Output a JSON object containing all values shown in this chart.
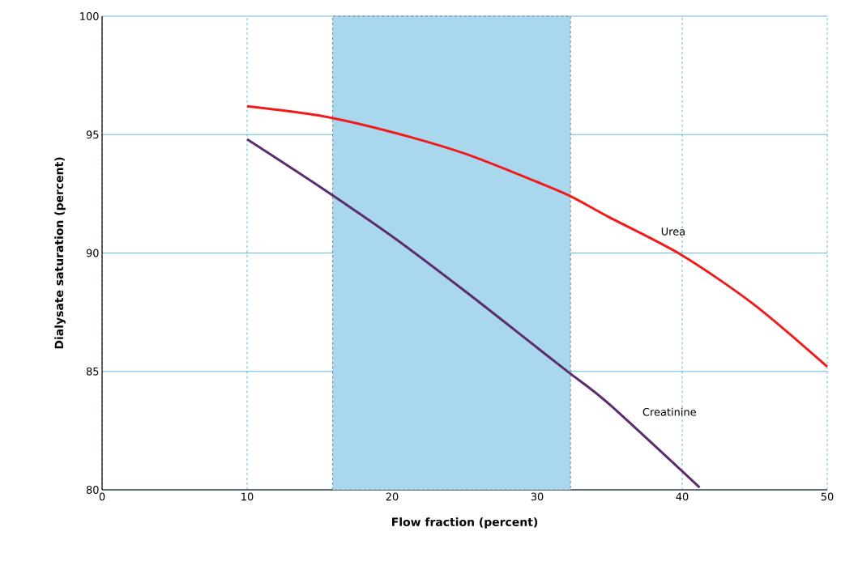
{
  "chart_data": {
    "type": "line",
    "xlabel": "Flow fraction (percent)",
    "ylabel": "Dialysate saturation (percent)",
    "xlim": [
      0,
      50
    ],
    "ylim": [
      80,
      100
    ],
    "xticks": [
      0,
      10,
      20,
      30,
      40,
      50
    ],
    "yticks": [
      80,
      85,
      90,
      95,
      100
    ],
    "grid": true,
    "legend": false,
    "marker": "none",
    "line_style": "solid",
    "bands": [
      {
        "axis": "x",
        "from": 15.9,
        "to": 32.3,
        "color": "#a9d8ee"
      }
    ],
    "series": [
      {
        "name": "Urea",
        "color": "#f21a1a",
        "x": [
          10,
          15,
          20,
          25,
          30,
          32.3,
          35,
          40,
          45,
          50
        ],
        "values": [
          96.2,
          95.8,
          95.1,
          94.2,
          93.0,
          92.4,
          91.5,
          89.9,
          87.8,
          85.2
        ]
      },
      {
        "name": "Creatinine",
        "color": "#5c2d6e",
        "x": [
          10,
          15,
          20,
          25,
          30,
          32.3,
          35,
          41.2
        ],
        "values": [
          94.8,
          92.8,
          90.7,
          88.4,
          86.0,
          84.9,
          83.6,
          80.1
        ]
      }
    ]
  }
}
